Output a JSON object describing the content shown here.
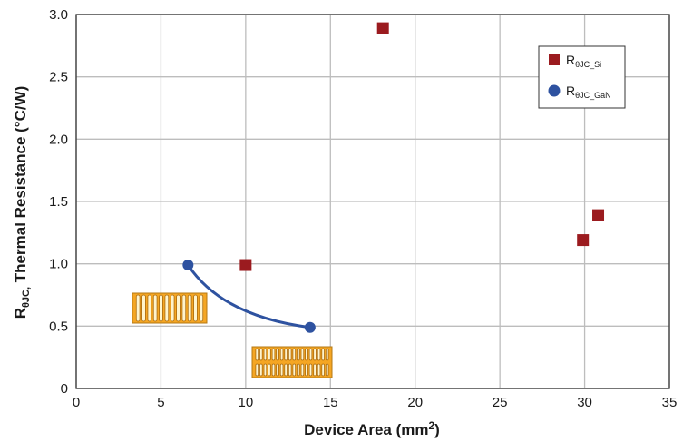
{
  "chart_data": {
    "type": "scatter",
    "xlabel_main": "Device Area (mm",
    "xlabel_sup": "2",
    "xlabel_end": ")",
    "ylabel_main": "R",
    "ylabel_sub": "θJC,",
    "ylabel_rest": " Thermal Resistance (°C/W)",
    "xlim": [
      0,
      35
    ],
    "ylim": [
      0,
      3.0
    ],
    "x_ticks": [
      "0",
      "5",
      "10",
      "15",
      "20",
      "25",
      "30",
      "35"
    ],
    "y_ticks": [
      "0",
      "0.5",
      "1.0",
      "1.5",
      "2.0",
      "2.5",
      "3.0"
    ],
    "grid": true,
    "legend_position": "top-right",
    "series": [
      {
        "name": "RθJC_Si",
        "name_main": "R",
        "name_sub": "θJC_Si",
        "marker": "square",
        "color": "#9b1b1f",
        "points": [
          {
            "x": 10.0,
            "y": 0.99
          },
          {
            "x": 18.1,
            "y": 2.89
          },
          {
            "x": 29.9,
            "y": 1.19
          },
          {
            "x": 30.8,
            "y": 1.39
          }
        ]
      },
      {
        "name": "RθJC_GaN",
        "name_main": "R",
        "name_sub": "θJC_GaN",
        "marker": "circle",
        "color": "#2e52a0",
        "trend_curve": true,
        "points": [
          {
            "x": 6.6,
            "y": 0.99
          },
          {
            "x": 13.8,
            "y": 0.49
          }
        ]
      }
    ],
    "images": [
      {
        "name": "gan-die-small-image",
        "color": "#f5a623"
      },
      {
        "name": "gan-die-large-image",
        "color": "#f5a623"
      }
    ]
  }
}
